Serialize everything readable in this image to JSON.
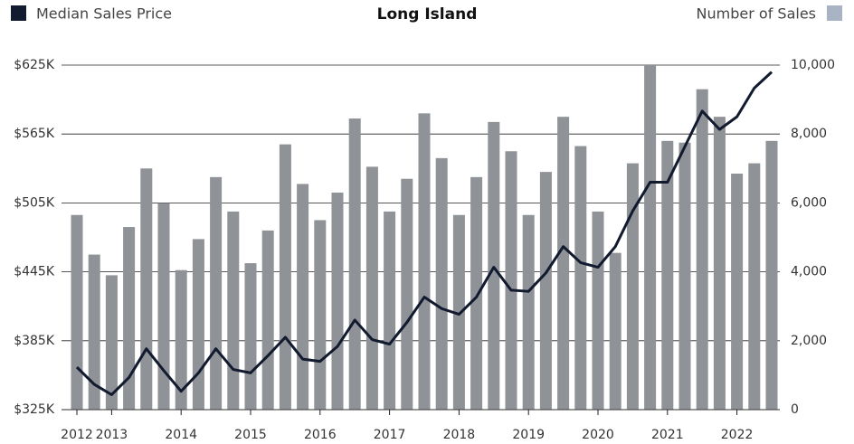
{
  "chart_data": {
    "type": "bar",
    "title": "Long Island",
    "categories": [
      "2012",
      null,
      "2013",
      null,
      null,
      null,
      "2014",
      null,
      null,
      null,
      "2015",
      null,
      null,
      null,
      "2016",
      null,
      null,
      null,
      "2017",
      null,
      null,
      null,
      "2018",
      null,
      null,
      null,
      "2019",
      null,
      null,
      null,
      "2020",
      null,
      null,
      null,
      "2021",
      null,
      null,
      null,
      "2022",
      null,
      null
    ],
    "series": [
      {
        "name": "Number of Sales",
        "type": "bar",
        "axis": "y2",
        "color": "#8f9297",
        "legend_color": "#a8b3c3",
        "values": [
          5650,
          4500,
          3900,
          5300,
          7000,
          6000,
          4050,
          4950,
          6750,
          5750,
          4250,
          5200,
          7700,
          6550,
          5500,
          6300,
          8450,
          7050,
          5750,
          6700,
          8600,
          7300,
          5650,
          6750,
          8350,
          7500,
          5650,
          6900,
          8500,
          7650,
          5750,
          4550,
          7150,
          10000,
          7800,
          7750,
          9300,
          8500,
          6850,
          7150,
          7800
        ]
      },
      {
        "name": "Median Sales Price",
        "type": "line",
        "color": "#111a2e",
        "values": [
          362000,
          347000,
          338000,
          353000,
          378000,
          359000,
          341000,
          357000,
          378000,
          360000,
          357000,
          372000,
          388000,
          369000,
          367000,
          380000,
          403000,
          386000,
          382000,
          401000,
          423000,
          413000,
          408000,
          423000,
          449000,
          429000,
          428000,
          444000,
          467000,
          453000,
          449000,
          467000,
          498000,
          523000,
          523000,
          554000,
          585000,
          569000,
          580000,
          605000,
          619000
        ]
      }
    ],
    "ylim": [
      325000,
      625000
    ],
    "yticks": [
      {
        "value": 325000,
        "label": "$325K"
      },
      {
        "value": 385000,
        "label": "$385K"
      },
      {
        "value": 445000,
        "label": "$445K"
      },
      {
        "value": 505000,
        "label": "$505K"
      },
      {
        "value": 565000,
        "label": "$565K"
      },
      {
        "value": 625000,
        "label": "$625K"
      }
    ],
    "y2lim": [
      0,
      10000
    ],
    "y2ticks": [
      0,
      {
        "value": 2000,
        "label": "2,000"
      },
      {
        "value": 4000,
        "label": "4,000"
      },
      {
        "value": 6000,
        "label": "6,000"
      },
      {
        "value": 8000,
        "label": "8,000"
      },
      {
        "value": 10000,
        "label": "10,000"
      }
    ],
    "grid": true
  }
}
